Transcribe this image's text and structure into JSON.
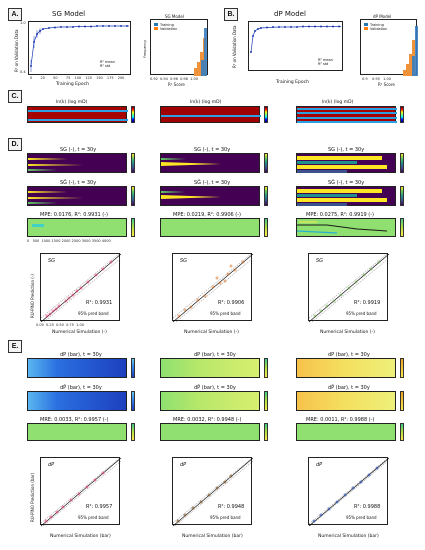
{
  "panels": {
    "a": "A.",
    "b": "B.",
    "c": "C.",
    "d": "D.",
    "e": "E."
  },
  "section_a": {
    "title": "SG Model",
    "ylabel": "R² on Validation Data",
    "xlabel": "Training Epoch",
    "legend": [
      "R² mean",
      "R² std"
    ],
    "hist_title": "SG Model",
    "hist_legend": [
      "Training",
      "Validation"
    ],
    "hist_xlabel": "R² Score",
    "hist_ylabel": "Frequency",
    "yticks": [
      "1.0",
      "0.9",
      "0.8",
      "0.7",
      "0.6",
      "0.5",
      "0.4"
    ],
    "xticks": [
      "0",
      "25",
      "50",
      "75",
      "100",
      "125",
      "150",
      "175",
      "200"
    ],
    "hist_xticks": [
      "0.92",
      "0.94",
      "0.96",
      "0.98",
      "1.00"
    ]
  },
  "section_b": {
    "title": "dP Model",
    "ylabel": "R² on Validation Data",
    "xlabel": "Training Epoch",
    "legend": [
      "R² mean",
      "R² std"
    ],
    "hist_title": "dP Model",
    "hist_legend": [
      "Training",
      "Validation"
    ],
    "hist_xlabel": "R² Score",
    "hist_ylabel": "Frequency",
    "hist_xticks": [
      "0.9",
      "0.95",
      "1.00"
    ]
  },
  "section_c": {
    "titles": [
      "ln(k) (log mD)",
      "ln(k) (log mD)",
      "ln(k) (log mD)"
    ],
    "cbar": [
      "0",
      "-5"
    ]
  },
  "section_d": {
    "row1": [
      "SG (-), t = 30y",
      "SG (-), t = 30y",
      "SG (-), t = 30y"
    ],
    "row2": [
      "SĜ (-), t = 30y",
      "SĜ (-), t = 30y",
      "SĜ (-), t = 30y"
    ],
    "row3": [
      "MPE: 0.0176, R²: 0.9931 (-)",
      "MPE: 0.0219, R²: 0.9906 (-)",
      "MPE: 0.0275, R²: 0.9919 (-)"
    ],
    "cb_top": [
      "1.0",
      "0.5",
      "0.0"
    ],
    "cb_err": [
      "0.2",
      "0.0",
      "-0.2"
    ],
    "xticks": [
      "0",
      "500",
      "1000",
      "1500",
      "2000",
      "2500",
      "3000",
      "3500",
      "4000"
    ],
    "scatter": {
      "label": "SG",
      "xlabel": "Numerical Simulation (-)",
      "ylabel": "RU-PINO Prediction (-)",
      "r2": [
        "R²: 0.9931",
        "R²: 0.9906",
        "R²: 0.9919"
      ],
      "band": "95% pred band",
      "ticks": [
        "0.00",
        "0.25",
        "0.50",
        "0.75",
        "1.00"
      ]
    }
  },
  "section_e": {
    "row1": [
      "dP (bar), t = 30y",
      "dP (bar), t = 30y",
      "dP (bar), t = 30y"
    ],
    "row2": [
      "dP̂ (bar), t = 30y",
      "dP̂ (bar), t = 30y",
      "dP̂ (bar), t = 30y"
    ],
    "row3": [
      "MRE: 0.0033, R²: 0.9957 (-)",
      "MRE: 0.0032, R²: 0.9948 (-)",
      "MRE: 0.0011, R²: 0.9988 (-)"
    ],
    "cb_top": [
      "5.0",
      "2.5"
    ],
    "scatter": {
      "label": "dP",
      "xlabel": "Numerical Simulation (bar)",
      "ylabel": "RU-PINO Prediction (bar)",
      "r2": [
        "R²: 0.9957",
        "R²: 0.9948",
        "R²: 0.9988"
      ],
      "band": "95% pred band"
    }
  }
}
